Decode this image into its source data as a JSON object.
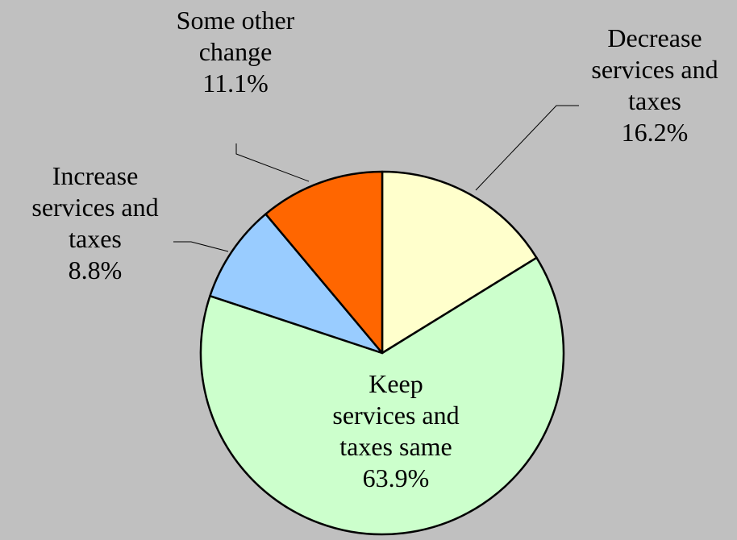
{
  "chart_data": {
    "type": "pie",
    "categories": [
      "Decrease services and taxes",
      "Keep services and taxes same",
      "Increase services and taxes",
      "Some other change"
    ],
    "values": [
      16.2,
      63.9,
      8.8,
      11.1
    ],
    "value_labels": [
      "16.2%",
      "63.9%",
      "8.8%",
      "11.1%"
    ],
    "label_lines": [
      [
        "Decrease",
        "services and",
        "taxes",
        "16.2%"
      ],
      [
        "Keep",
        "services and",
        "taxes same",
        "63.9%"
      ],
      [
        "Increase",
        "services and",
        "taxes",
        "8.8%"
      ],
      [
        "Some other",
        "change",
        "11.1%"
      ]
    ],
    "colors": [
      "#ffffcc",
      "#ccffcc",
      "#99ccff",
      "#ff6600"
    ],
    "start": "12 o'clock",
    "direction": "clockwise",
    "legend": "none"
  }
}
